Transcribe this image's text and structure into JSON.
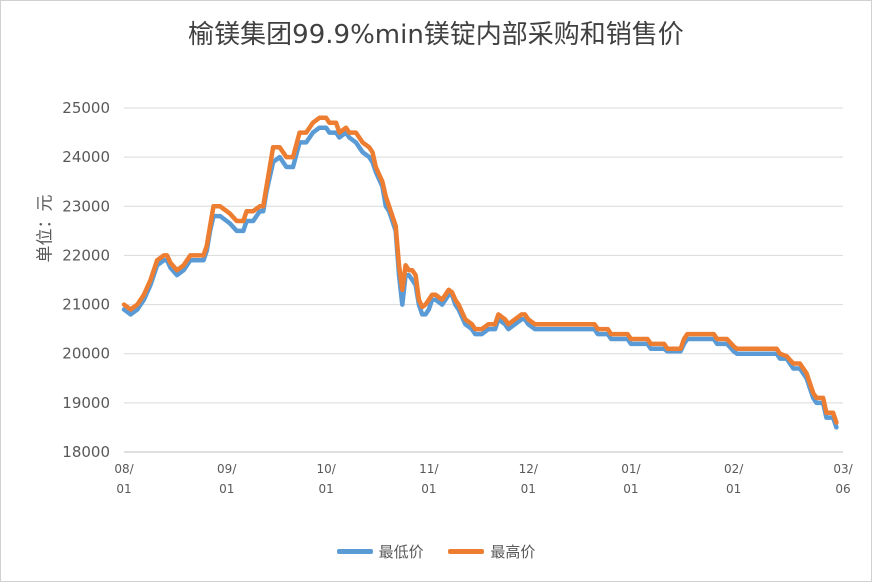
{
  "chart_data": {
    "type": "line",
    "title": "榆镁集团99.9%min镁锭内部采购和销售价",
    "ylabel": "单位：元",
    "xlabel": "",
    "ylim": [
      18000,
      25000
    ],
    "yticks": [
      18000,
      19000,
      20000,
      21000,
      22000,
      23000,
      24000,
      25000
    ],
    "grid": true,
    "legend": "bottom",
    "x_ticks": [
      {
        "label_top": "08/",
        "label_bottom": "01",
        "x": 0
      },
      {
        "label_top": "09/",
        "label_bottom": "01",
        "x": 31
      },
      {
        "label_top": "10/",
        "label_bottom": "01",
        "x": 61
      },
      {
        "label_top": "11/",
        "label_bottom": "01",
        "x": 92
      },
      {
        "label_top": "12/",
        "label_bottom": "01",
        "x": 122
      },
      {
        "label_top": "01/",
        "label_bottom": "01",
        "x": 153
      },
      {
        "label_top": "02/",
        "label_bottom": "01",
        "x": 184
      },
      {
        "label_top": "03/",
        "label_bottom": "06",
        "x": 217
      }
    ],
    "series": [
      {
        "name": "最低价",
        "color": "#5b9bd5",
        "points": [
          [
            0,
            20900
          ],
          [
            2,
            20800
          ],
          [
            4,
            20900
          ],
          [
            6,
            21100
          ],
          [
            8,
            21400
          ],
          [
            10,
            21800
          ],
          [
            12,
            21900
          ],
          [
            13,
            21900
          ],
          [
            14,
            21750
          ],
          [
            16,
            21600
          ],
          [
            18,
            21700
          ],
          [
            20,
            21900
          ],
          [
            22,
            21900
          ],
          [
            24,
            21900
          ],
          [
            25,
            22100
          ],
          [
            26,
            22500
          ],
          [
            27,
            22800
          ],
          [
            29,
            22800
          ],
          [
            31,
            22700
          ],
          [
            32,
            22650
          ],
          [
            34,
            22500
          ],
          [
            36,
            22500
          ],
          [
            37,
            22700
          ],
          [
            39,
            22700
          ],
          [
            41,
            22900
          ],
          [
            42,
            22900
          ],
          [
            43,
            23300
          ],
          [
            45,
            23900
          ],
          [
            47,
            24000
          ],
          [
            49,
            23800
          ],
          [
            51,
            23800
          ],
          [
            53,
            24300
          ],
          [
            55,
            24300
          ],
          [
            57,
            24500
          ],
          [
            59,
            24600
          ],
          [
            61,
            24600
          ],
          [
            62,
            24500
          ],
          [
            64,
            24500
          ],
          [
            65,
            24400
          ],
          [
            67,
            24500
          ],
          [
            68,
            24400
          ],
          [
            70,
            24300
          ],
          [
            72,
            24100
          ],
          [
            74,
            24000
          ],
          [
            75,
            23900
          ],
          [
            76,
            23700
          ],
          [
            78,
            23400
          ],
          [
            79,
            23000
          ],
          [
            80,
            22900
          ],
          [
            81,
            22700
          ],
          [
            82,
            22500
          ],
          [
            83,
            21600
          ],
          [
            84,
            21000
          ],
          [
            85,
            21600
          ],
          [
            86,
            21600
          ],
          [
            87,
            21500
          ],
          [
            88,
            21400
          ],
          [
            89,
            21000
          ],
          [
            90,
            20800
          ],
          [
            91,
            20800
          ],
          [
            92,
            20900
          ],
          [
            93,
            21100
          ],
          [
            94,
            21100
          ],
          [
            96,
            21000
          ],
          [
            98,
            21200
          ],
          [
            99,
            21200
          ],
          [
            100,
            21000
          ],
          [
            101,
            20900
          ],
          [
            103,
            20600
          ],
          [
            105,
            20500
          ],
          [
            106,
            20400
          ],
          [
            108,
            20400
          ],
          [
            110,
            20500
          ],
          [
            112,
            20500
          ],
          [
            113,
            20700
          ],
          [
            115,
            20600
          ],
          [
            116,
            20500
          ],
          [
            118,
            20600
          ],
          [
            120,
            20700
          ],
          [
            121,
            20700
          ],
          [
            122,
            20600
          ],
          [
            124,
            20500
          ],
          [
            126,
            20500
          ],
          [
            128,
            20500
          ],
          [
            134,
            20500
          ],
          [
            140,
            20500
          ],
          [
            142,
            20500
          ],
          [
            143,
            20400
          ],
          [
            146,
            20400
          ],
          [
            147,
            20300
          ],
          [
            150,
            20300
          ],
          [
            152,
            20300
          ],
          [
            153,
            20200
          ],
          [
            158,
            20200
          ],
          [
            159,
            20100
          ],
          [
            163,
            20100
          ],
          [
            164,
            20050
          ],
          [
            168,
            20050
          ],
          [
            169,
            20200
          ],
          [
            170,
            20300
          ],
          [
            171,
            20300
          ],
          [
            178,
            20300
          ],
          [
            179,
            20200
          ],
          [
            182,
            20200
          ],
          [
            184,
            20050
          ],
          [
            185,
            20000
          ],
          [
            192,
            20000
          ],
          [
            197,
            20000
          ],
          [
            198,
            19900
          ],
          [
            200,
            19900
          ],
          [
            202,
            19700
          ],
          [
            204,
            19700
          ],
          [
            206,
            19500
          ],
          [
            207,
            19300
          ],
          [
            208,
            19100
          ],
          [
            209,
            19000
          ],
          [
            210,
            19000
          ],
          [
            211,
            19000
          ],
          [
            212,
            18700
          ],
          [
            214,
            18700
          ],
          [
            215,
            18500
          ]
        ]
      },
      {
        "name": "最高价",
        "color": "#ed7d31",
        "points": [
          [
            0,
            21000
          ],
          [
            2,
            20900
          ],
          [
            4,
            21000
          ],
          [
            6,
            21200
          ],
          [
            8,
            21500
          ],
          [
            10,
            21900
          ],
          [
            12,
            22000
          ],
          [
            13,
            22000
          ],
          [
            14,
            21850
          ],
          [
            16,
            21700
          ],
          [
            18,
            21800
          ],
          [
            20,
            22000
          ],
          [
            22,
            22000
          ],
          [
            24,
            22000
          ],
          [
            25,
            22200
          ],
          [
            26,
            22600
          ],
          [
            27,
            23000
          ],
          [
            29,
            23000
          ],
          [
            31,
            22900
          ],
          [
            32,
            22850
          ],
          [
            34,
            22700
          ],
          [
            36,
            22700
          ],
          [
            37,
            22900
          ],
          [
            39,
            22900
          ],
          [
            41,
            23000
          ],
          [
            42,
            23000
          ],
          [
            43,
            23400
          ],
          [
            45,
            24200
          ],
          [
            47,
            24200
          ],
          [
            49,
            24000
          ],
          [
            51,
            24000
          ],
          [
            53,
            24500
          ],
          [
            55,
            24500
          ],
          [
            57,
            24700
          ],
          [
            59,
            24800
          ],
          [
            61,
            24800
          ],
          [
            62,
            24700
          ],
          [
            64,
            24700
          ],
          [
            65,
            24500
          ],
          [
            67,
            24600
          ],
          [
            68,
            24500
          ],
          [
            70,
            24500
          ],
          [
            72,
            24300
          ],
          [
            74,
            24200
          ],
          [
            75,
            24100
          ],
          [
            76,
            23800
          ],
          [
            78,
            23500
          ],
          [
            79,
            23200
          ],
          [
            80,
            23000
          ],
          [
            81,
            22800
          ],
          [
            82,
            22600
          ],
          [
            83,
            21800
          ],
          [
            84,
            21300
          ],
          [
            85,
            21800
          ],
          [
            86,
            21700
          ],
          [
            87,
            21700
          ],
          [
            88,
            21600
          ],
          [
            89,
            21100
          ],
          [
            90,
            20950
          ],
          [
            91,
            21000
          ],
          [
            92,
            21100
          ],
          [
            93,
            21200
          ],
          [
            94,
            21200
          ],
          [
            96,
            21100
          ],
          [
            98,
            21300
          ],
          [
            99,
            21250
          ],
          [
            100,
            21100
          ],
          [
            101,
            21000
          ],
          [
            103,
            20700
          ],
          [
            105,
            20600
          ],
          [
            106,
            20500
          ],
          [
            108,
            20500
          ],
          [
            110,
            20600
          ],
          [
            112,
            20600
          ],
          [
            113,
            20800
          ],
          [
            115,
            20700
          ],
          [
            116,
            20600
          ],
          [
            118,
            20700
          ],
          [
            120,
            20800
          ],
          [
            121,
            20800
          ],
          [
            122,
            20700
          ],
          [
            124,
            20600
          ],
          [
            126,
            20600
          ],
          [
            128,
            20600
          ],
          [
            134,
            20600
          ],
          [
            140,
            20600
          ],
          [
            142,
            20600
          ],
          [
            143,
            20500
          ],
          [
            146,
            20500
          ],
          [
            147,
            20400
          ],
          [
            150,
            20400
          ],
          [
            152,
            20400
          ],
          [
            153,
            20300
          ],
          [
            158,
            20300
          ],
          [
            159,
            20200
          ],
          [
            163,
            20200
          ],
          [
            164,
            20100
          ],
          [
            168,
            20100
          ],
          [
            169,
            20300
          ],
          [
            170,
            20400
          ],
          [
            171,
            20400
          ],
          [
            178,
            20400
          ],
          [
            179,
            20300
          ],
          [
            182,
            20300
          ],
          [
            184,
            20150
          ],
          [
            185,
            20100
          ],
          [
            192,
            20100
          ],
          [
            197,
            20100
          ],
          [
            198,
            20000
          ],
          [
            200,
            19950
          ],
          [
            202,
            19800
          ],
          [
            204,
            19800
          ],
          [
            206,
            19600
          ],
          [
            207,
            19400
          ],
          [
            208,
            19200
          ],
          [
            209,
            19100
          ],
          [
            210,
            19100
          ],
          [
            211,
            19100
          ],
          [
            212,
            18800
          ],
          [
            214,
            18800
          ],
          [
            215,
            18600
          ]
        ]
      }
    ]
  }
}
